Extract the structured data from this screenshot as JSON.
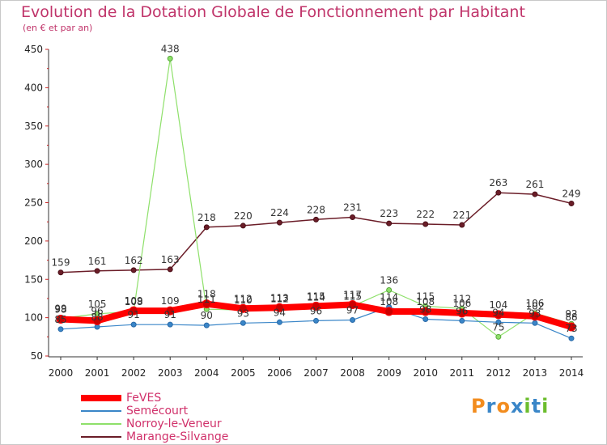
{
  "title": "Evolution de la Dotation Globale de Fonctionnement par Habitant",
  "subtitle": "(en € et par an)",
  "logo": {
    "text": "Proxiti",
    "colors": [
      "#f28c1e",
      "#3a86c8",
      "#f28c1e",
      "#3a86c8",
      "#6cbd2e",
      "#3a86c8",
      "#6cbd2e"
    ]
  },
  "chart_data": {
    "type": "line",
    "title": "Evolution de la Dotation Globale de Fonctionnement par Habitant",
    "subtitle": "(en € et par an)",
    "x": [
      "2000",
      "2001",
      "2002",
      "2003",
      "2004",
      "2005",
      "2006",
      "2007",
      "2008",
      "2009",
      "2010",
      "2011",
      "2012",
      "2013",
      "2014"
    ],
    "ylim": [
      50,
      450
    ],
    "yticks": [
      50,
      100,
      150,
      200,
      250,
      300,
      350,
      400,
      450
    ],
    "grid": false,
    "legend_position": "bottom-left",
    "series": [
      {
        "name": "FeVES",
        "color": "#ff0000",
        "values": [
          98,
          96,
          109,
          109,
          118,
          112,
          113,
          115,
          117,
          108,
          108,
          106,
          104,
          102,
          88
        ]
      },
      {
        "name": "Semécourt",
        "color": "#3a86c8",
        "values": [
          85,
          88,
          91,
          91,
          90,
          93,
          94,
          96,
          97,
          114,
          98,
          96,
          94,
          93,
          73
        ]
      },
      {
        "name": "Norroy-le-Veneur",
        "color": "#8ee06a",
        "values": [
          99,
          105,
          108,
          438,
          111,
          110,
          112,
          114,
          115,
          136,
          115,
          112,
          75,
          106,
          92
        ]
      },
      {
        "name": "Marange-Silvange",
        "color": "#6b1d28",
        "values": [
          159,
          161,
          162,
          163,
          218,
          220,
          224,
          228,
          231,
          223,
          222,
          221,
          263,
          261,
          249
        ]
      }
    ]
  }
}
